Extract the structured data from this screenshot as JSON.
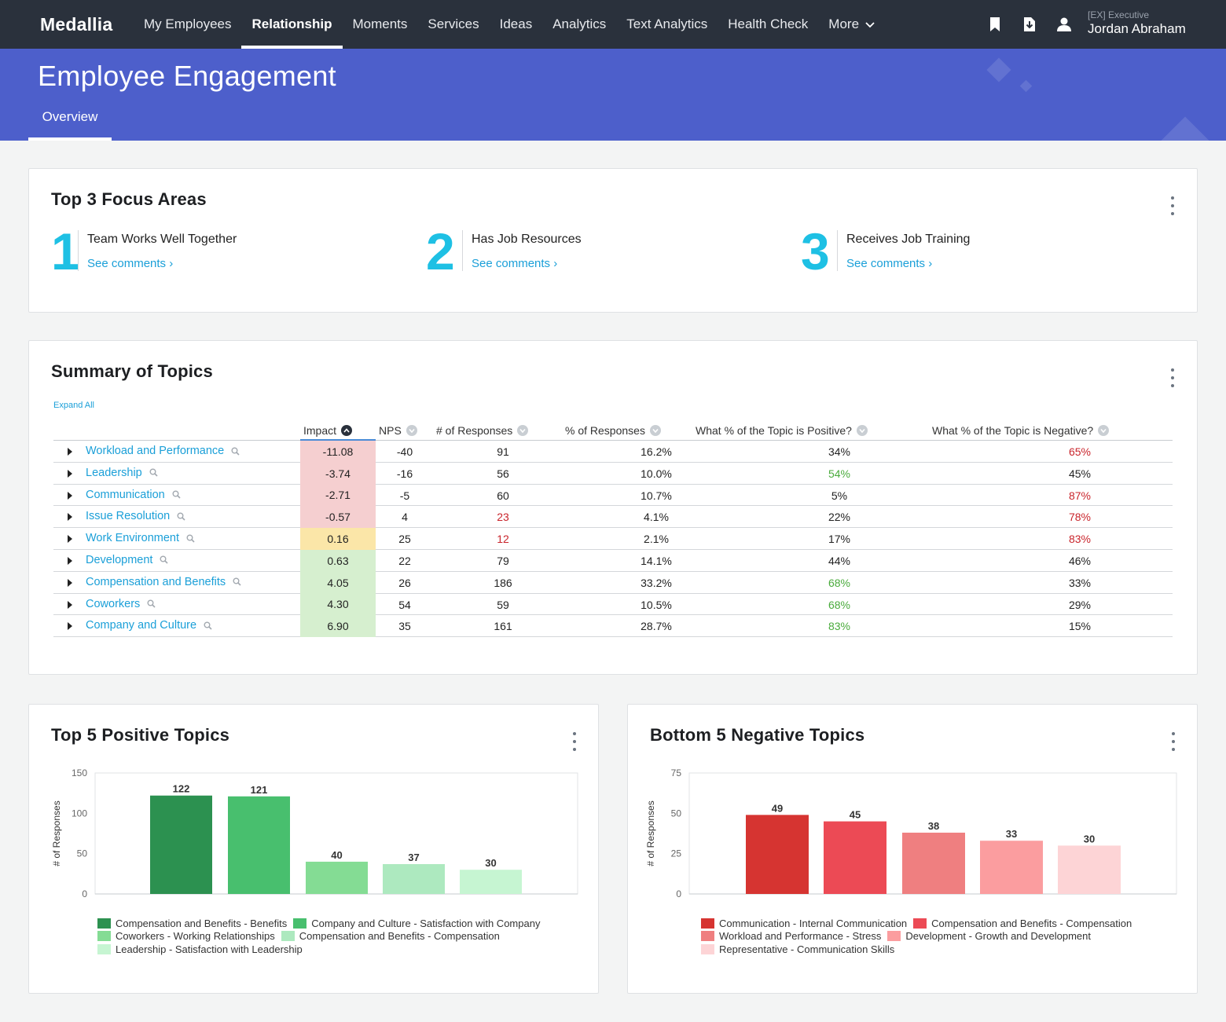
{
  "nav": {
    "logo": "Medallia",
    "items": [
      {
        "label": "My Employees",
        "active": false
      },
      {
        "label": "Relationship",
        "active": true
      },
      {
        "label": "Moments",
        "active": false
      },
      {
        "label": "Services",
        "active": false
      },
      {
        "label": "Ideas",
        "active": false
      },
      {
        "label": "Analytics",
        "active": false
      },
      {
        "label": "Text Analytics",
        "active": false
      },
      {
        "label": "Health Check",
        "active": false
      },
      {
        "label": "More",
        "active": false
      }
    ],
    "icons": [
      "bookmark-icon",
      "download-icon",
      "user-icon"
    ],
    "user": {
      "role": "[EX] Executive",
      "name": "Jordan Abraham"
    }
  },
  "header": {
    "title": "Employee Engagement",
    "tab": "Overview"
  },
  "focus": {
    "title": "Top 3 Focus Areas",
    "items": [
      {
        "num": "1",
        "label": "Team Works Well Together",
        "link": "See comments ›"
      },
      {
        "num": "2",
        "label": "Has Job Resources",
        "link": "See comments ›"
      },
      {
        "num": "3",
        "label": "Receives Job Training",
        "link": "See comments ›"
      }
    ]
  },
  "summary": {
    "title": "Summary of Topics",
    "expand_all": "Expand All",
    "columns": {
      "impact": "Impact",
      "nps": "NPS",
      "responses": "# of Responses",
      "pct_responses": "% of Responses",
      "positive": "What % of the Topic is Positive?",
      "negative": "What % of the Topic is Negative?"
    },
    "rows": [
      {
        "topic": "Workload and Performance",
        "impact": "-11.08",
        "impact_color": "#f5cfd0",
        "nps": "-40",
        "responses": "91",
        "responses_flag": "",
        "pct": "16.2%",
        "pos": "34%",
        "pos_flag": "",
        "neg": "65%",
        "neg_flag": "red"
      },
      {
        "topic": "Leadership",
        "impact": "-3.74",
        "impact_color": "#f5cfd0",
        "nps": "-16",
        "responses": "56",
        "responses_flag": "",
        "pct": "10.0%",
        "pos": "54%",
        "pos_flag": "green",
        "neg": "45%",
        "neg_flag": ""
      },
      {
        "topic": "Communication",
        "impact": "-2.71",
        "impact_color": "#f5cfd0",
        "nps": "-5",
        "responses": "60",
        "responses_flag": "",
        "pct": "10.7%",
        "pos": "5%",
        "pos_flag": "",
        "neg": "87%",
        "neg_flag": "red"
      },
      {
        "topic": "Issue Resolution",
        "impact": "-0.57",
        "impact_color": "#f5cfd0",
        "nps": "4",
        "responses": "23",
        "responses_flag": "red",
        "pct": "4.1%",
        "pos": "22%",
        "pos_flag": "",
        "neg": "78%",
        "neg_flag": "red"
      },
      {
        "topic": "Work Environment",
        "impact": "0.16",
        "impact_color": "#fbe6a8",
        "nps": "25",
        "responses": "12",
        "responses_flag": "red",
        "pct": "2.1%",
        "pos": "17%",
        "pos_flag": "",
        "neg": "83%",
        "neg_flag": "red"
      },
      {
        "topic": "Development",
        "impact": "0.63",
        "impact_color": "#d6efcf",
        "nps": "22",
        "responses": "79",
        "responses_flag": "",
        "pct": "14.1%",
        "pos": "44%",
        "pos_flag": "",
        "neg": "46%",
        "neg_flag": ""
      },
      {
        "topic": "Compensation and Benefits",
        "impact": "4.05",
        "impact_color": "#d6efcf",
        "nps": "26",
        "responses": "186",
        "responses_flag": "",
        "pct": "33.2%",
        "pos": "68%",
        "pos_flag": "green",
        "neg": "33%",
        "neg_flag": ""
      },
      {
        "topic": "Coworkers",
        "impact": "4.30",
        "impact_color": "#d6efcf",
        "nps": "54",
        "responses": "59",
        "responses_flag": "",
        "pct": "10.5%",
        "pos": "68%",
        "pos_flag": "green",
        "neg": "29%",
        "neg_flag": ""
      },
      {
        "topic": "Company and Culture",
        "impact": "6.90",
        "impact_color": "#d6efcf",
        "nps": "35",
        "responses": "161",
        "responses_flag": "",
        "pct": "28.7%",
        "pos": "83%",
        "pos_flag": "green",
        "neg": "15%",
        "neg_flag": ""
      }
    ]
  },
  "chart_data": [
    {
      "type": "bar",
      "title": "Top 5 Positive Topics",
      "ylabel": "# of Responses",
      "ylim": [
        0,
        150
      ],
      "yticks": [
        0,
        50,
        100,
        150
      ],
      "grid": false,
      "legend_position": "bottom",
      "categories": [
        "Compensation and Benefits - Benefits",
        "Company and Culture - Satisfaction with Company",
        "Coworkers - Working Relationships",
        "Compensation and Benefits - Compensation",
        "Leadership - Satisfaction with Leadership"
      ],
      "values": [
        122,
        121,
        40,
        37,
        30
      ],
      "colors": [
        "#2c9150",
        "#48bf6e",
        "#84dc94",
        "#ade9bf",
        "#c6f5d2"
      ]
    },
    {
      "type": "bar",
      "title": "Bottom 5 Negative Topics",
      "ylabel": "# of Responses",
      "ylim": [
        0,
        75
      ],
      "yticks": [
        0,
        25,
        50,
        75
      ],
      "grid": false,
      "legend_position": "bottom",
      "categories": [
        "Communication - Internal Communication",
        "Compensation and Benefits - Compensation",
        "Workload and Performance - Stress",
        "Development - Growth and Development",
        "Representative - Communication Skills"
      ],
      "values": [
        49,
        45,
        38,
        33,
        30
      ],
      "colors": [
        "#d63431",
        "#ec4a55",
        "#ef7f80",
        "#fb9d9f",
        "#fdd4d6"
      ]
    }
  ]
}
